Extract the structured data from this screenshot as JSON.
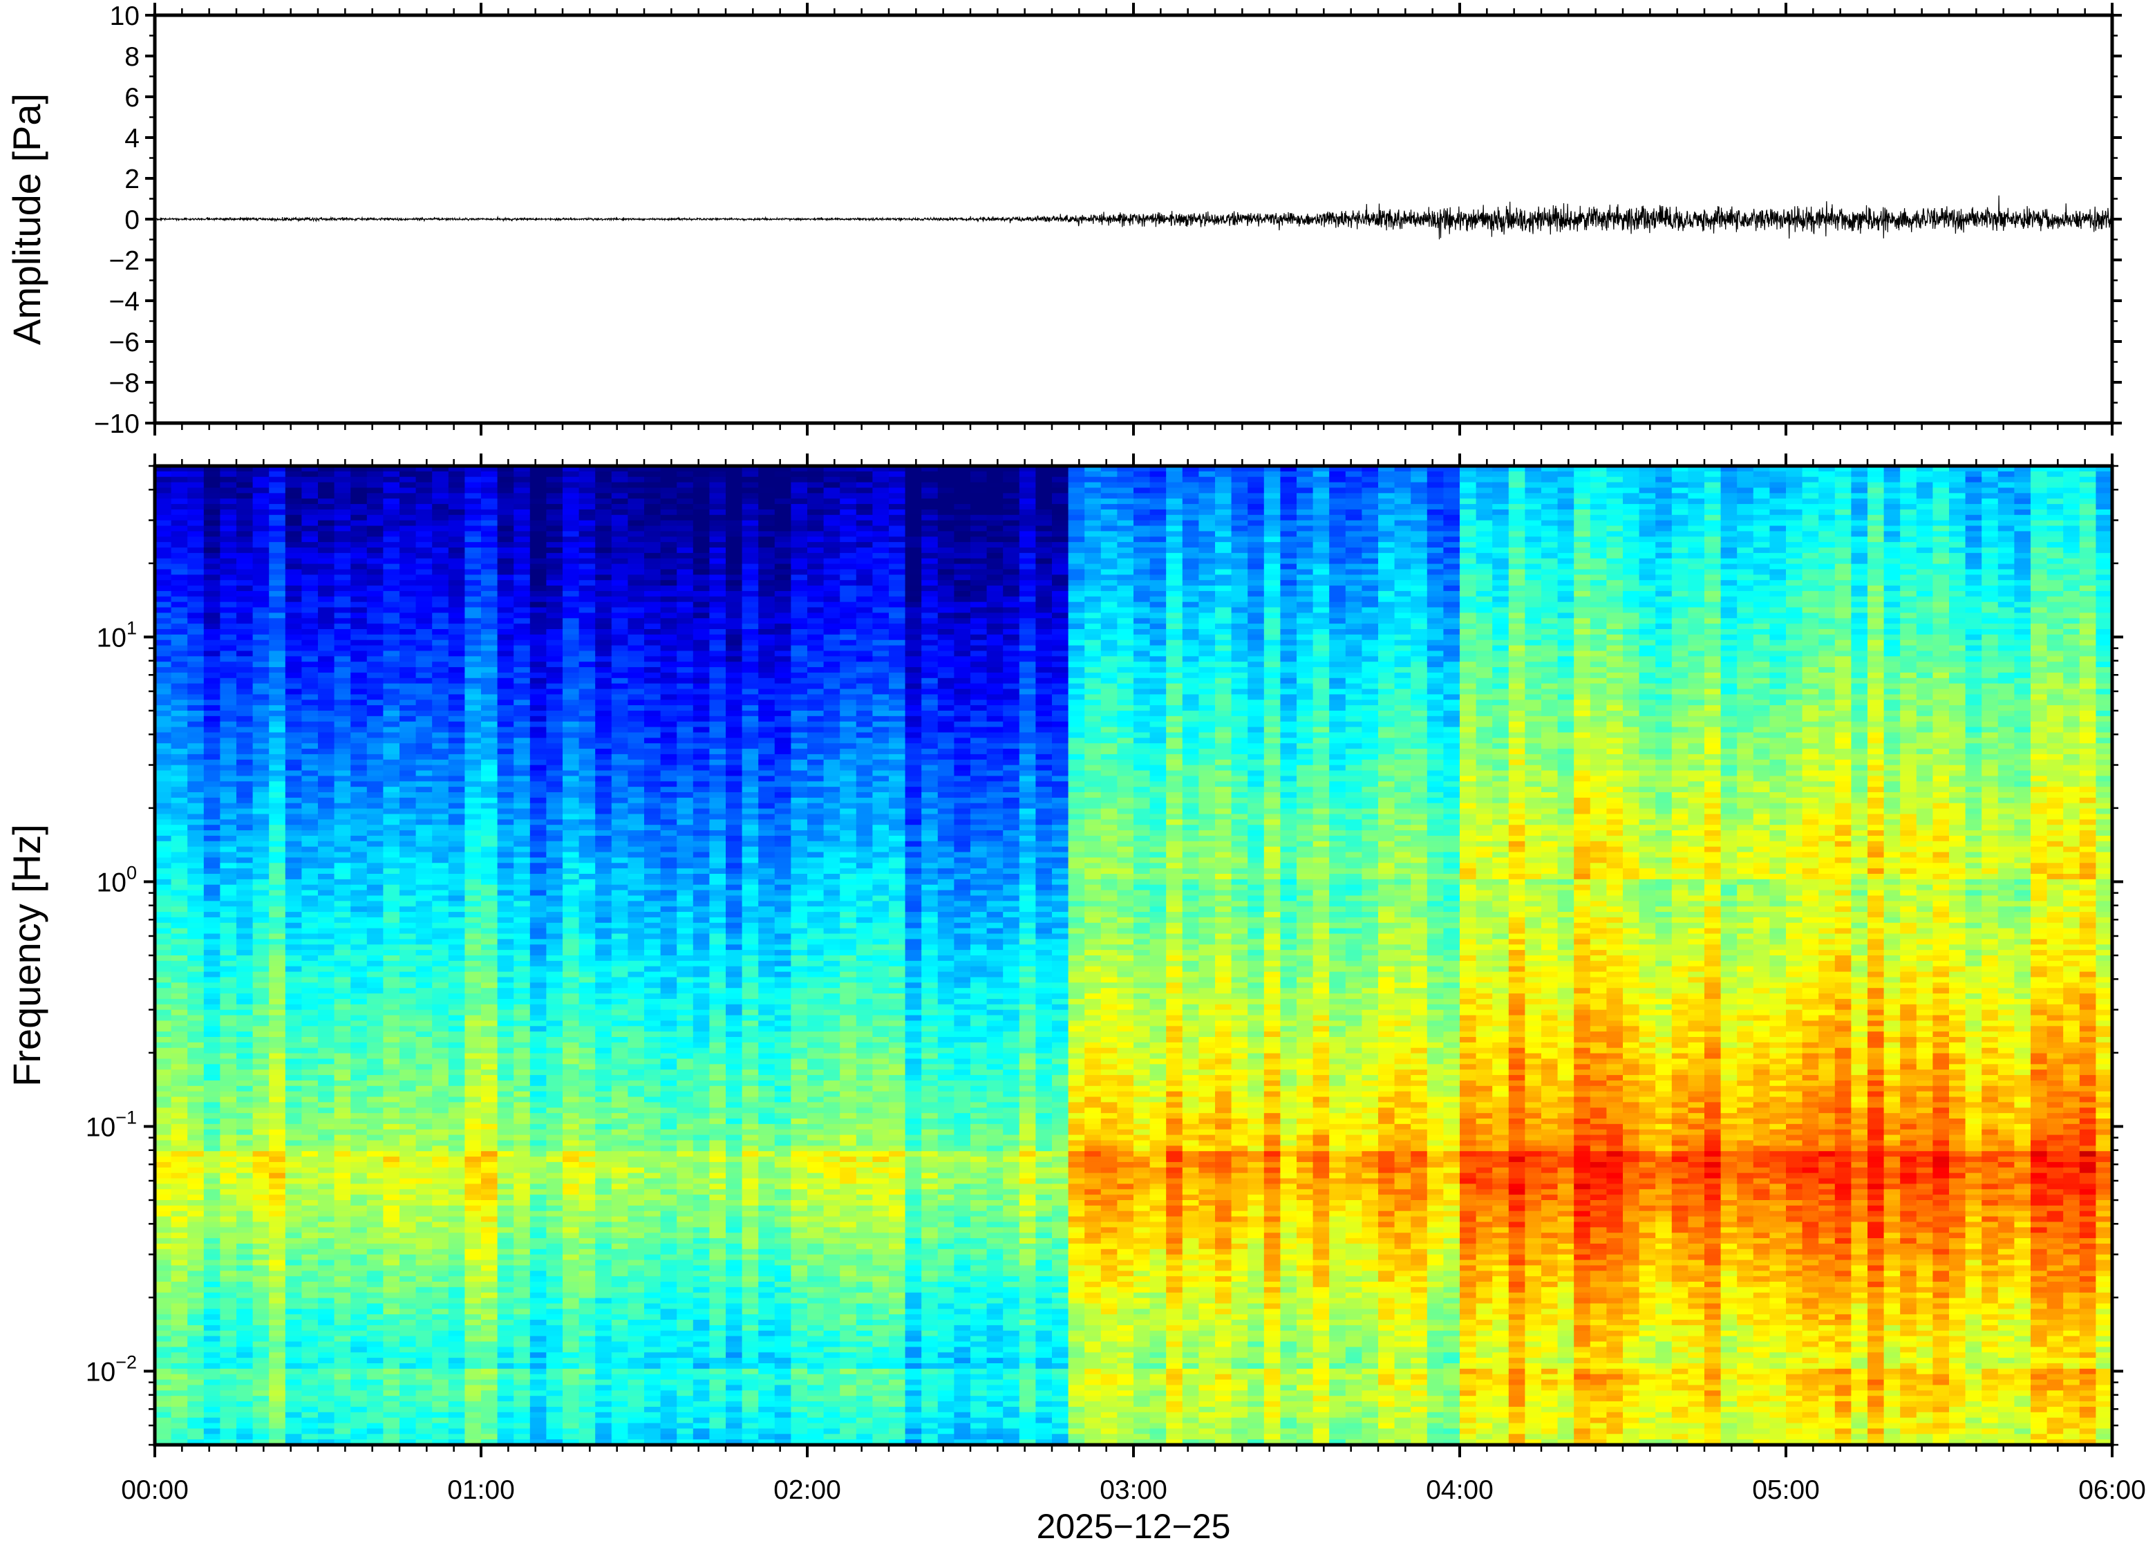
{
  "chart_data": [
    {
      "type": "line",
      "title": "",
      "ylabel": "Amplitude [Pa]",
      "ylim": [
        -10,
        10
      ],
      "y_ticks": [
        "10",
        "8",
        "6",
        "4",
        "2",
        "0",
        "−2",
        "−4",
        "−6",
        "−8",
        "−10"
      ],
      "y_tick_values": [
        10,
        8,
        6,
        4,
        2,
        0,
        -2,
        -4,
        -6,
        -8,
        -10
      ],
      "x_range_hours": [
        0,
        6
      ],
      "grid": false,
      "series": [
        {
          "color": "#000000",
          "x_hours": [
            0,
            0.5,
            1,
            1.5,
            2,
            2.5,
            2.75,
            3,
            3.5,
            4,
            4.25,
            4.5,
            5,
            5.5,
            6
          ],
          "envelope_pa": [
            0.05,
            0.08,
            0.05,
            0.05,
            0.05,
            0.08,
            0.15,
            0.35,
            0.35,
            0.6,
            0.7,
            0.65,
            0.6,
            0.6,
            0.55
          ],
          "peak_pa": [
            0.1,
            0.15,
            0.1,
            0.1,
            0.1,
            0.15,
            0.3,
            0.6,
            0.6,
            1.1,
            1.3,
            1.2,
            1.0,
            1.1,
            1.4
          ]
        }
      ]
    },
    {
      "type": "heatmap",
      "title": "",
      "ylabel": "Frequency [Hz]",
      "y_scale": "log",
      "ylim_hz": [
        0.005,
        50
      ],
      "y_ticks": [
        {
          "base": "10",
          "exp": "1",
          "value": 10
        },
        {
          "base": "10",
          "exp": "0",
          "value": 1
        },
        {
          "base": "10",
          "exp": "−1",
          "value": 0.1
        },
        {
          "base": "10",
          "exp": "−2",
          "value": 0.01
        }
      ],
      "colormap": "jet",
      "grid": false,
      "description_hours": [
        0,
        6
      ]
    }
  ],
  "x_axis": {
    "tick_labels": [
      "00:00",
      "01:00",
      "02:00",
      "03:00",
      "04:00",
      "05:00",
      "06:00"
    ],
    "tick_hours": [
      0,
      1,
      2,
      3,
      4,
      5,
      6
    ],
    "date_label": "2025−12−25"
  },
  "colors": {
    "axis": "#000000",
    "trace": "#000000"
  }
}
